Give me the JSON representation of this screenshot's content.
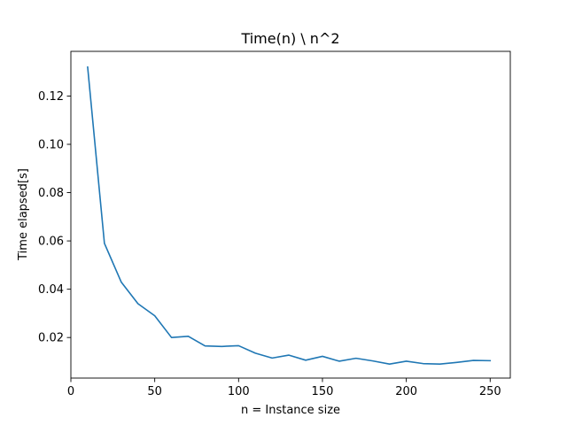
{
  "chart_data": {
    "type": "line",
    "title": "Time(n) \\ n^2",
    "xlabel": "n = Instance size",
    "ylabel": "Time elapsed[s]",
    "xlim": [
      0,
      262
    ],
    "ylim": [
      0.0032,
      0.1385
    ],
    "xticks": [
      0,
      50,
      100,
      150,
      200,
      250
    ],
    "yticks": [
      0.02,
      0.04,
      0.06,
      0.08,
      0.1,
      0.12
    ],
    "xtick_labels": [
      "0",
      "50",
      "100",
      "150",
      "200",
      "250"
    ],
    "ytick_labels": [
      "0.02",
      "0.04",
      "0.06",
      "0.08",
      "0.10",
      "0.12"
    ],
    "grid": false,
    "series": [
      {
        "color": "#1f77b4",
        "x": [
          10,
          20,
          30,
          40,
          50,
          60,
          70,
          80,
          90,
          100,
          110,
          120,
          130,
          140,
          150,
          160,
          170,
          180,
          190,
          200,
          210,
          220,
          230,
          240,
          250
        ],
        "y": [
          0.132,
          0.059,
          0.043,
          0.034,
          0.029,
          0.02,
          0.0205,
          0.0165,
          0.0163,
          0.0166,
          0.0135,
          0.0115,
          0.0127,
          0.0106,
          0.0122,
          0.0102,
          0.0114,
          0.0103,
          0.009,
          0.0102,
          0.0092,
          0.009,
          0.0097,
          0.0105,
          0.0104
        ]
      }
    ]
  }
}
